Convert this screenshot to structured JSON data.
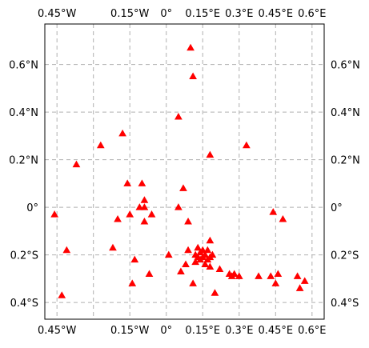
{
  "map": {
    "colors": {
      "grid": "#b0b0b0",
      "marker": "#ff0000",
      "frame": "#000000",
      "background": "#ffffff"
    },
    "marker_icon": "red-triangle-marker",
    "gridlines": true,
    "extent": {
      "lon": [
        -0.5,
        0.65
      ],
      "lat": [
        -0.47,
        0.77
      ]
    },
    "x_ticks": [
      {
        "value": -0.45,
        "label": "0.45°W"
      },
      {
        "value": -0.15,
        "label": "0.15°W"
      },
      {
        "value": 0.0,
        "label": "0°"
      },
      {
        "value": 0.15,
        "label": "0.15°E"
      },
      {
        "value": 0.3,
        "label": "0.3°E"
      },
      {
        "value": 0.45,
        "label": "0.45°E"
      },
      {
        "value": 0.6,
        "label": "0.6°E"
      }
    ],
    "x_grid": [
      -0.45,
      -0.3,
      -0.15,
      0.0,
      0.15,
      0.3,
      0.45,
      0.6
    ],
    "y_ticks": [
      {
        "value": 0.6,
        "label": "0.6°N"
      },
      {
        "value": 0.4,
        "label": "0.4°N"
      },
      {
        "value": 0.2,
        "label": "0.2°N"
      },
      {
        "value": 0.0,
        "label": "0°"
      },
      {
        "value": -0.2,
        "label": "0.2°S"
      },
      {
        "value": -0.4,
        "label": "0.4°S"
      }
    ],
    "y_grid": [
      0.6,
      0.4,
      0.2,
      0.0,
      -0.2,
      -0.4
    ],
    "points": [
      [
        0.1,
        0.67
      ],
      [
        0.11,
        0.55
      ],
      [
        0.05,
        0.38
      ],
      [
        -0.18,
        0.31
      ],
      [
        -0.27,
        0.26
      ],
      [
        0.18,
        0.22
      ],
      [
        0.33,
        0.26
      ],
      [
        -0.37,
        0.18
      ],
      [
        -0.16,
        0.1
      ],
      [
        -0.1,
        0.1
      ],
      [
        0.07,
        0.08
      ],
      [
        -0.09,
        0.03
      ],
      [
        -0.11,
        0.0
      ],
      [
        -0.09,
        0.0
      ],
      [
        0.05,
        0.0
      ],
      [
        -0.15,
        -0.03
      ],
      [
        -0.06,
        -0.03
      ],
      [
        -0.2,
        -0.05
      ],
      [
        -0.46,
        -0.03
      ],
      [
        -0.09,
        -0.06
      ],
      [
        0.09,
        -0.06
      ],
      [
        0.44,
        -0.02
      ],
      [
        0.48,
        -0.05
      ],
      [
        -0.41,
        -0.18
      ],
      [
        -0.22,
        -0.17
      ],
      [
        0.18,
        -0.14
      ],
      [
        0.01,
        -0.2
      ],
      [
        0.09,
        -0.18
      ],
      [
        0.12,
        -0.2
      ],
      [
        0.13,
        -0.17
      ],
      [
        0.14,
        -0.19
      ],
      [
        0.15,
        -0.18
      ],
      [
        0.15,
        -0.21
      ],
      [
        0.16,
        -0.2
      ],
      [
        0.17,
        -0.18
      ],
      [
        0.17,
        -0.22
      ],
      [
        0.14,
        -0.22
      ],
      [
        0.12,
        -0.23
      ],
      [
        0.13,
        -0.21
      ],
      [
        0.16,
        -0.24
      ],
      [
        0.18,
        -0.25
      ],
      [
        0.18,
        -0.21
      ],
      [
        0.19,
        -0.2
      ],
      [
        0.08,
        -0.24
      ],
      [
        -0.13,
        -0.22
      ],
      [
        0.06,
        -0.27
      ],
      [
        -0.07,
        -0.28
      ],
      [
        0.22,
        -0.26
      ],
      [
        0.26,
        -0.28
      ],
      [
        0.27,
        -0.29
      ],
      [
        0.28,
        -0.28
      ],
      [
        0.3,
        -0.29
      ],
      [
        0.38,
        -0.29
      ],
      [
        0.43,
        -0.29
      ],
      [
        0.46,
        -0.28
      ],
      [
        0.45,
        -0.32
      ],
      [
        0.54,
        -0.29
      ],
      [
        0.55,
        -0.34
      ],
      [
        0.57,
        -0.31
      ],
      [
        0.11,
        -0.32
      ],
      [
        -0.14,
        -0.32
      ],
      [
        0.2,
        -0.36
      ],
      [
        -0.43,
        -0.37
      ]
    ]
  }
}
